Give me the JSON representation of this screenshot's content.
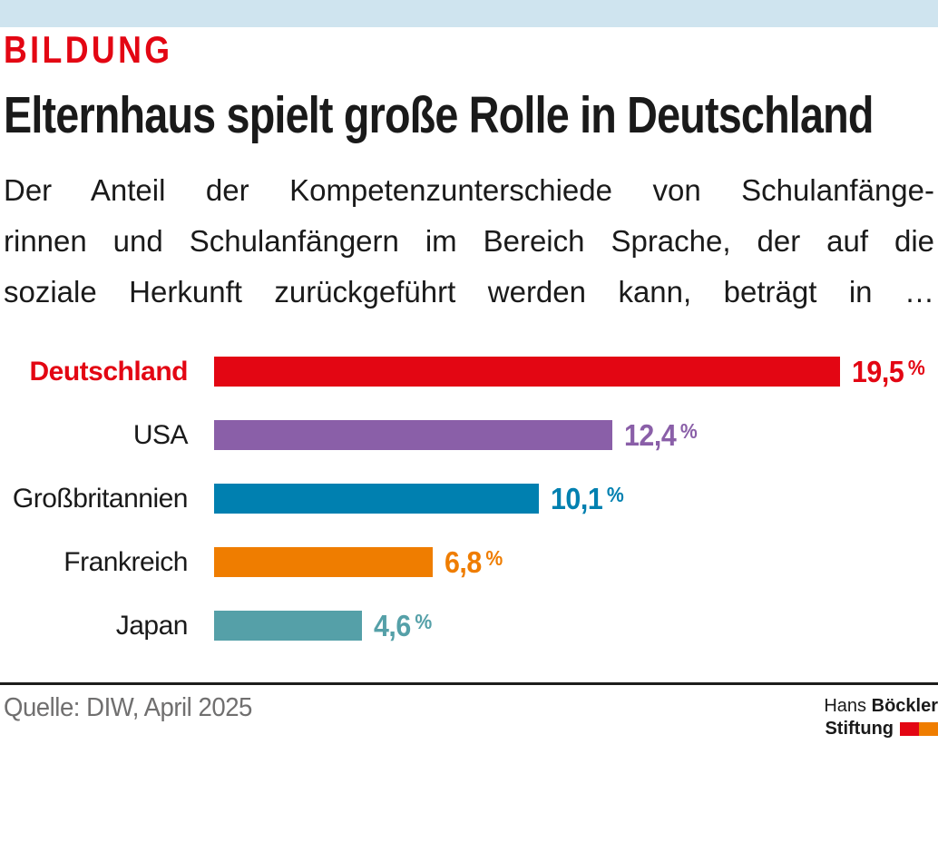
{
  "header": {
    "kicker": "BILDUNG",
    "title": "Elternhaus spielt große Rolle in Deutschland",
    "subtitle_lines": [
      "Der Anteil der Kompetenzunterschiede von Schulanfänge-",
      "rinnen und Schulanfängern im Bereich Sprache, der auf die",
      "soziale Herkunft zurückgeführt werden kann, beträgt in …"
    ]
  },
  "chart_data": {
    "type": "bar",
    "orientation": "horizontal",
    "categories": [
      "Deutschland",
      "USA",
      "Großbritannien",
      "Frankreich",
      "Japan"
    ],
    "values": [
      19.5,
      12.4,
      10.1,
      6.8,
      4.6
    ],
    "value_labels": [
      "19,5",
      "12,4",
      "10,1",
      "6,8",
      "4,6"
    ],
    "unit": "%",
    "colors": [
      "#e30613",
      "#8a5fa8",
      "#0080b0",
      "#ef7d00",
      "#55a0a8"
    ],
    "highlight_index": 0,
    "xlim": [
      0,
      19.5
    ],
    "grid": false,
    "legend": "none",
    "title": "Elternhaus spielt große Rolle in Deutschland",
    "xlabel": "",
    "ylabel": ""
  },
  "footer": {
    "source": "Quelle: DIW, April 2025",
    "logo": {
      "line1_regular": "Hans",
      "line1_bold": "Böckler",
      "line2_bold": "Stiftung",
      "square_colors": [
        "#e30613",
        "#ef7d00"
      ]
    }
  },
  "colors": {
    "band": "#cfe4ef",
    "accent_red": "#e30613",
    "text": "#1a1a1a",
    "muted": "#706f6f"
  }
}
